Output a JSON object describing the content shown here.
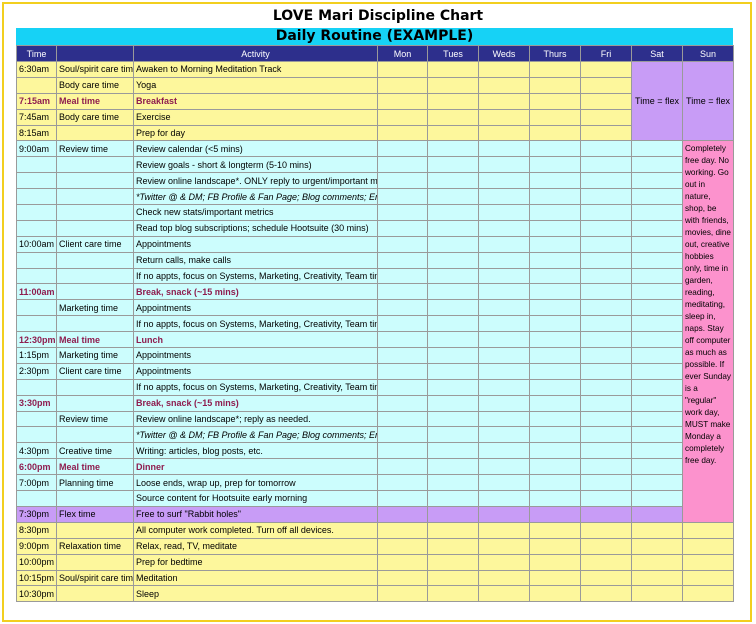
{
  "title": "LOVE Mari Discipline Chart",
  "subtitle": "Daily Routine (EXAMPLE)",
  "colors": {
    "header_bg": "#2d2f8c",
    "banner": "#16d2f6",
    "yellow": "#fdf79c",
    "cyan": "#ccfdfd",
    "purple": "#c89cf6",
    "pink": "#fc92cd",
    "meal_text": "#8e1c4e"
  },
  "columns": [
    "Time",
    "",
    "Activity",
    "Mon",
    "Tues",
    "Weds",
    "Thurs",
    "Fri",
    "Sat",
    "Sun"
  ],
  "sat_note": "Time = flex",
  "sun_note_top": "Time = flex",
  "sun_note_main": "Completely free day. No working. Go out in nature, shop, be with friends, movies, dine out, creative hobbies only, time in garden, reading, meditating, sleep in, naps. Stay off computer as much as possible. If ever Sunday is a \"regular\" work day, MUST make Monday a completely free day.",
  "rows": [
    {
      "time": "6:30am",
      "cat": "Soul/spirit care time",
      "act": "Awaken to Morning Meditation Track",
      "style": "yellow"
    },
    {
      "time": "",
      "cat": "Body care time",
      "act": "Yoga",
      "style": "yellow"
    },
    {
      "time": "7:15am",
      "cat": "Meal time",
      "act": "Breakfast",
      "style": "yellow meal"
    },
    {
      "time": "7:45am",
      "cat": "Body care time",
      "act": "Exercise",
      "style": "yellow"
    },
    {
      "time": "8:15am",
      "cat": "",
      "act": "Prep for day",
      "style": "yellow"
    },
    {
      "time": "9:00am",
      "cat": "Review time",
      "act": "Review calendar (<5 mins)",
      "style": "cyan"
    },
    {
      "time": "",
      "cat": "",
      "act": "Review goals - short & longterm (5-10 mins)",
      "style": "cyan"
    },
    {
      "time": "",
      "cat": "",
      "act": "Review online landscape*. ONLY reply to urgent/important matters.",
      "style": "cyan"
    },
    {
      "time": "",
      "cat": "",
      "act": "*Twitter @ & DM; FB Profile & Fan Page; Blog comments; Email",
      "style": "cyan it"
    },
    {
      "time": "",
      "cat": "",
      "act": "Check new stats/important metrics",
      "style": "cyan"
    },
    {
      "time": "",
      "cat": "",
      "act": "Read top blog subscriptions; schedule Hootsuite (30 mins)",
      "style": "cyan"
    },
    {
      "time": "10:00am",
      "cat": "Client care time",
      "act": "Appointments",
      "style": "cyan"
    },
    {
      "time": "",
      "cat": "",
      "act": "Return calls, make calls",
      "style": "cyan"
    },
    {
      "time": "",
      "cat": "",
      "act": "If no appts, focus on Systems, Marketing, Creativity, Team time",
      "style": "cyan"
    },
    {
      "time": "11:00am",
      "cat": "",
      "act": "Break, snack (~15 mins)",
      "style": "cyan meal"
    },
    {
      "time": "",
      "cat": "Marketing time",
      "act": "Appointments",
      "style": "cyan"
    },
    {
      "time": "",
      "cat": "",
      "act": "If no appts, focus on Systems, Marketing, Creativity, Team time",
      "style": "cyan"
    },
    {
      "time": "12:30pm",
      "cat": "Meal time",
      "act": "Lunch",
      "style": "cyan meal"
    },
    {
      "time": "1:15pm",
      "cat": "Marketing time",
      "act": "Appointments",
      "style": "cyan"
    },
    {
      "time": "2:30pm",
      "cat": "Client care time",
      "act": "Appointments",
      "style": "cyan"
    },
    {
      "time": "",
      "cat": "",
      "act": "If no appts, focus on Systems, Marketing, Creativity, Team time",
      "style": "cyan"
    },
    {
      "time": "3:30pm",
      "cat": "",
      "act": "Break, snack (~15 mins)",
      "style": "cyan meal"
    },
    {
      "time": "",
      "cat": "Review time",
      "act": "Review online landscape*; reply as needed.",
      "style": "cyan"
    },
    {
      "time": "",
      "cat": "",
      "act": "*Twitter @ & DM; FB Profile & Fan Page; Blog comments; Email",
      "style": "cyan it"
    },
    {
      "time": "4:30pm",
      "cat": "Creative time",
      "act": "Writing: articles, blog posts, etc.",
      "style": "cyan"
    },
    {
      "time": "6:00pm",
      "cat": "Meal time",
      "act": "Dinner",
      "style": "cyan meal"
    },
    {
      "time": "7:00pm",
      "cat": "Planning time",
      "act": "Loose ends, wrap up, prep for tomorrow",
      "style": "cyan"
    },
    {
      "time": "",
      "cat": "",
      "act": "Source content for Hootsuite early morning",
      "style": "cyan"
    },
    {
      "time": "7:30pm",
      "cat": "Flex time",
      "act": "Free to surf \"Rabbit holes\"",
      "style": "purple"
    },
    {
      "time": "8:30pm",
      "cat": "",
      "act": "All computer work completed. Turn off all devices.",
      "style": "yellow"
    },
    {
      "time": "9:00pm",
      "cat": "Relaxation time",
      "act": "Relax, read, TV, meditate",
      "style": "yellow"
    },
    {
      "time": "10:00pm",
      "cat": "",
      "act": "Prep for bedtime",
      "style": "yellow"
    },
    {
      "time": "10:15pm",
      "cat": "Soul/spirit care time",
      "act": "Meditation",
      "style": "yellow"
    },
    {
      "time": "10:30pm",
      "cat": "",
      "act": "Sleep",
      "style": "yellow"
    }
  ]
}
